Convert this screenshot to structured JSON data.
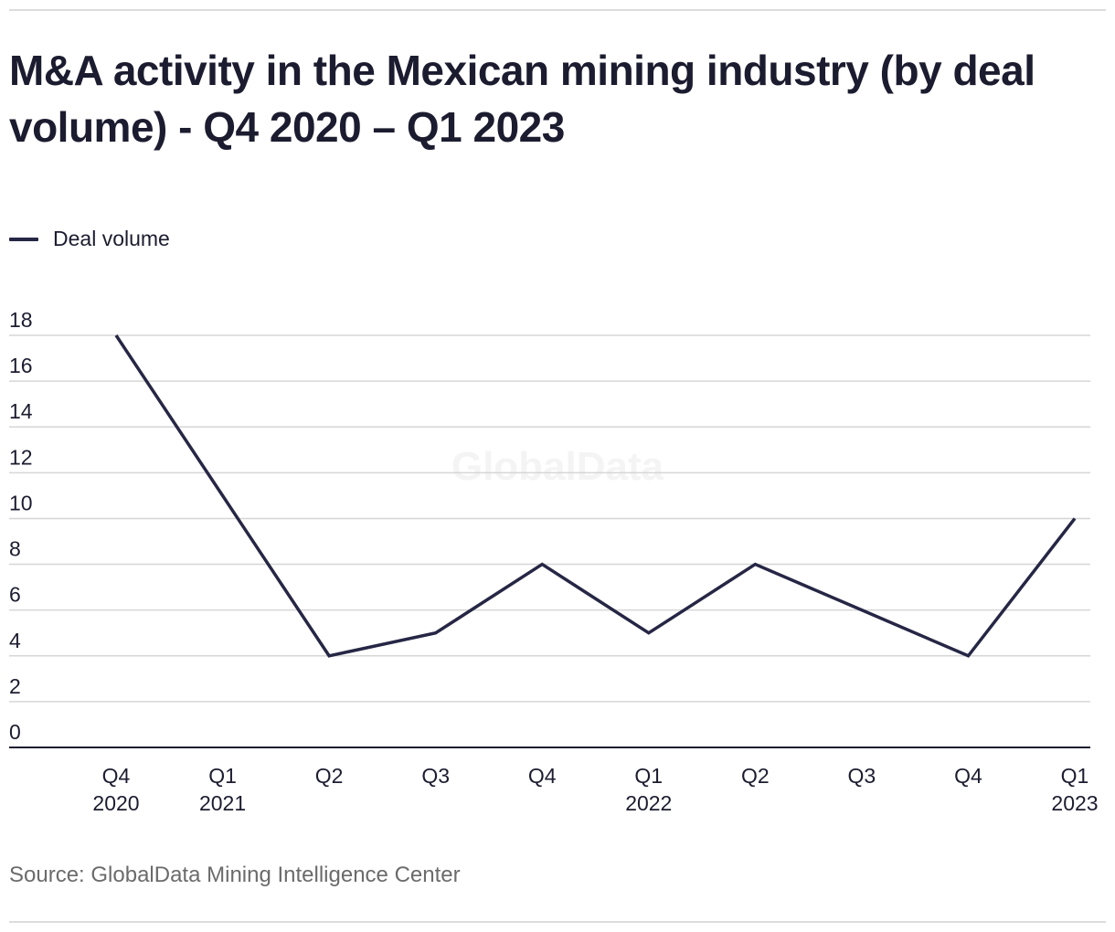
{
  "title": "M&A activity in the Mexican mining industry (by deal volume) - Q4 2020 – Q1 2023",
  "legend": {
    "label": "Deal volume",
    "color": "#262645"
  },
  "source": "Source: GlobalData Mining Intelligence Center",
  "watermark": "GlobalData",
  "chart_data": {
    "type": "line",
    "title": "M&A activity in the Mexican mining industry (by deal volume) - Q4 2020 – Q1 2023",
    "xlabel": "",
    "ylabel": "",
    "categories": [
      {
        "quarter": "Q4",
        "year": "2020"
      },
      {
        "quarter": "Q1",
        "year": "2021"
      },
      {
        "quarter": "Q2",
        "year": ""
      },
      {
        "quarter": "Q3",
        "year": ""
      },
      {
        "quarter": "Q4",
        "year": ""
      },
      {
        "quarter": "Q1",
        "year": "2022"
      },
      {
        "quarter": "Q2",
        "year": ""
      },
      {
        "quarter": "Q3",
        "year": ""
      },
      {
        "quarter": "Q4",
        "year": ""
      },
      {
        "quarter": "Q1",
        "year": "2023"
      }
    ],
    "series": [
      {
        "name": "Deal volume",
        "color": "#262645",
        "values": [
          18,
          11,
          4,
          5,
          8,
          5,
          8,
          6,
          4,
          10
        ]
      }
    ],
    "ylim": [
      0,
      18
    ],
    "yticks": [
      0,
      2,
      4,
      6,
      8,
      10,
      12,
      14,
      16,
      18
    ],
    "grid": true,
    "legend_position": "top-left"
  }
}
